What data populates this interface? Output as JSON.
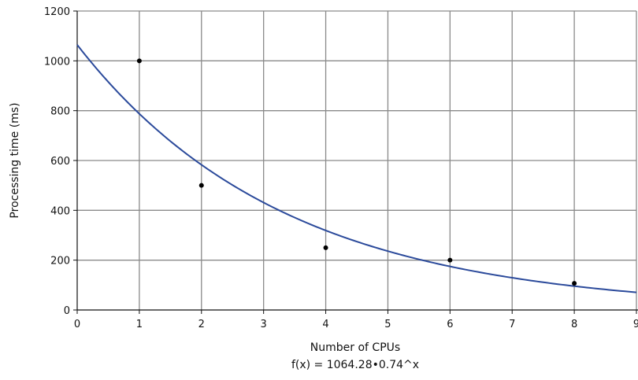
{
  "chart_data": {
    "type": "scatter",
    "xlabel": "Number of CPUs",
    "ylabel": "Processing time (ms)",
    "caption": "f(x) = 1064.28•0.74^x",
    "xlim": [
      0,
      9
    ],
    "ylim": [
      0,
      1200
    ],
    "x_ticks": [
      "0",
      "1",
      "2",
      "3",
      "4",
      "5",
      "6",
      "7",
      "8",
      "9"
    ],
    "y_ticks": [
      "0",
      "200",
      "400",
      "600",
      "800",
      "1000",
      "1200"
    ],
    "grid": true,
    "points": [
      {
        "x": 1,
        "y": 1000
      },
      {
        "x": 2,
        "y": 500
      },
      {
        "x": 4,
        "y": 250
      },
      {
        "x": 6,
        "y": 200
      },
      {
        "x": 8,
        "y": 107
      }
    ],
    "fit": {
      "a": 1064.28,
      "b": 0.74,
      "color": "#2b4a9b"
    }
  }
}
